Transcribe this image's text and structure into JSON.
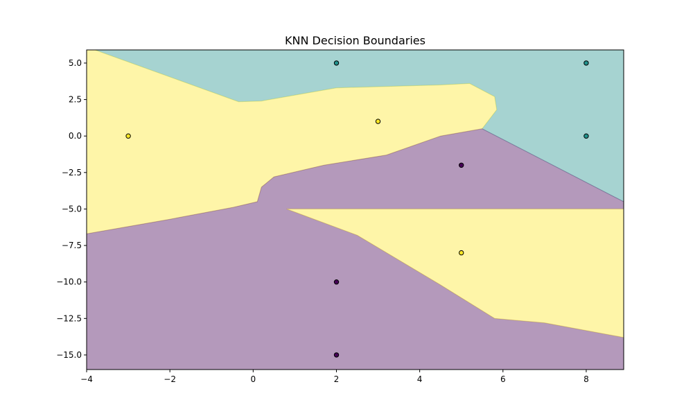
{
  "chart_data": {
    "type": "scatter",
    "title": "KNN Decision Boundaries",
    "xlabel": "",
    "ylabel": "",
    "xlim": [
      -4,
      8.9
    ],
    "ylim": [
      -16,
      5.9
    ],
    "x_ticks": [
      -4,
      -2,
      0,
      2,
      4,
      6,
      8
    ],
    "y_ticks": [
      5.0,
      2.5,
      0.0,
      -2.5,
      -5.0,
      -7.5,
      -10.0,
      -12.5,
      -15.0
    ],
    "x_tick_labels": [
      "−4",
      "−2",
      "0",
      "2",
      "4",
      "6",
      "8"
    ],
    "y_tick_labels": [
      "5.0",
      "2.5",
      "0.0",
      "−2.5",
      "−5.0",
      "−7.5",
      "−10.0",
      "−12.5",
      "−15.0"
    ],
    "grid": false,
    "region_alpha": 0.4,
    "classes": [
      {
        "id": 0,
        "color": "#440154"
      },
      {
        "id": 1,
        "color": "#21918c"
      },
      {
        "id": 2,
        "color": "#fde725"
      }
    ],
    "points": [
      {
        "x": -3,
        "y": 0,
        "class": 2
      },
      {
        "x": 3,
        "y": 1,
        "class": 2
      },
      {
        "x": 5,
        "y": -8,
        "class": 2
      },
      {
        "x": 2,
        "y": 5,
        "class": 1
      },
      {
        "x": 8,
        "y": 5,
        "class": 1
      },
      {
        "x": 8,
        "y": 0,
        "class": 1
      },
      {
        "x": 5,
        "y": -2,
        "class": 0
      },
      {
        "x": 2,
        "y": -10,
        "class": 0
      },
      {
        "x": 2,
        "y": -15,
        "class": 0
      }
    ],
    "regions": [
      {
        "class": 1,
        "polygon": [
          [
            -4,
            5.9
          ],
          [
            8.9,
            5.9
          ],
          [
            8.9,
            -4.5
          ],
          [
            5.5,
            0.5
          ],
          [
            5.85,
            1.8
          ],
          [
            5.8,
            2.7
          ],
          [
            5.2,
            3.6
          ],
          [
            4.5,
            3.5
          ],
          [
            2.0,
            3.3
          ],
          [
            0.2,
            2.4
          ],
          [
            -0.35,
            2.35
          ],
          [
            -3.8,
            5.9
          ]
        ]
      },
      {
        "class": 2,
        "polygon": [
          [
            -4,
            5.9
          ],
          [
            -3.8,
            5.9
          ],
          [
            -0.35,
            2.35
          ],
          [
            0.2,
            2.4
          ],
          [
            2.0,
            3.3
          ],
          [
            4.5,
            3.5
          ],
          [
            5.2,
            3.6
          ],
          [
            5.8,
            2.7
          ],
          [
            5.85,
            1.8
          ],
          [
            5.5,
            0.5
          ],
          [
            4.5,
            0
          ],
          [
            3.2,
            -1.3
          ],
          [
            1.7,
            -2.0
          ],
          [
            0.5,
            -2.8
          ],
          [
            0.2,
            -3.5
          ],
          [
            0.1,
            -4.5
          ],
          [
            -0.5,
            -4.9
          ],
          [
            -2.0,
            -5.7
          ],
          [
            -4,
            -6.7
          ]
        ]
      },
      {
        "class": 0,
        "polygon": [
          [
            -4,
            -6.7
          ],
          [
            -2.0,
            -5.7
          ],
          [
            -0.5,
            -4.9
          ],
          [
            0.1,
            -4.5
          ],
          [
            0.2,
            -3.5
          ],
          [
            0.5,
            -2.8
          ],
          [
            1.7,
            -2.0
          ],
          [
            3.2,
            -1.3
          ],
          [
            4.5,
            0
          ],
          [
            5.5,
            0.5
          ],
          [
            8.9,
            -4.5
          ],
          [
            8.9,
            -5.0
          ],
          [
            0.8,
            -5.0
          ],
          [
            2.5,
            -6.8
          ],
          [
            4.5,
            -10.2
          ],
          [
            5.8,
            -12.5
          ],
          [
            7.0,
            -12.8
          ],
          [
            8.9,
            -13.8
          ],
          [
            8.9,
            -16
          ],
          [
            -4,
            -16
          ]
        ]
      },
      {
        "class": 2,
        "polygon": [
          [
            0.8,
            -5.0
          ],
          [
            8.9,
            -5.0
          ],
          [
            8.9,
            -13.8
          ],
          [
            7.0,
            -12.8
          ],
          [
            5.8,
            -12.5
          ],
          [
            4.5,
            -10.2
          ],
          [
            2.5,
            -6.8
          ]
        ]
      }
    ]
  }
}
